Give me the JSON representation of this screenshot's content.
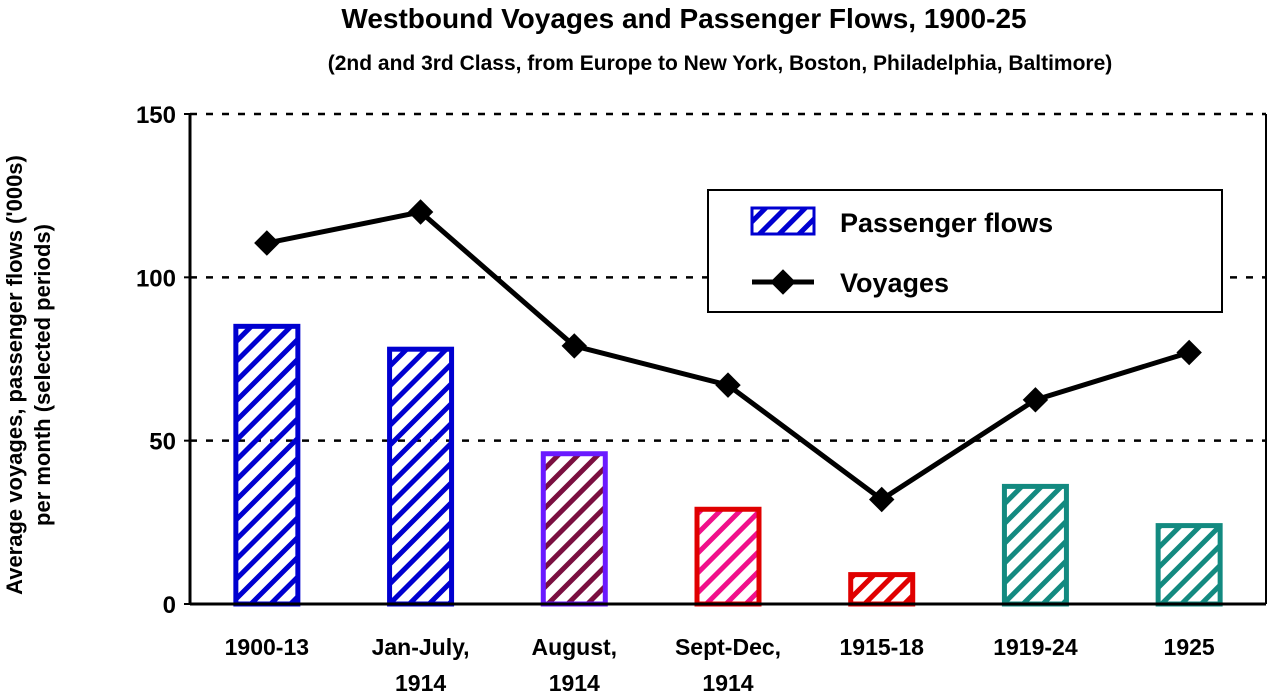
{
  "chart_data": {
    "type": "bar",
    "title": "Westbound Voyages and Passenger Flows, 1900-25",
    "subtitle": "(2nd and 3rd Class, from Europe to New York, Boston, Philadelphia, Baltimore)",
    "ylabel_line1": "Average voyages, passenger flows ('000s)",
    "ylabel_line2": "per month (selected periods)",
    "xlabel": "",
    "ylim": [
      0,
      150
    ],
    "yticks": [
      0,
      50,
      100,
      150
    ],
    "grid": "horizontal dashed at 50, 100, 150",
    "legend_placement": "top-right",
    "categories": [
      [
        "1900-13"
      ],
      [
        "Jan-July,",
        "1914"
      ],
      [
        "August,",
        "1914"
      ],
      [
        "Sept-Dec,",
        "1914"
      ],
      [
        "1915-18"
      ],
      [
        "1919-24"
      ],
      [
        "1925"
      ]
    ],
    "series": [
      {
        "name": "Passenger flows",
        "kind": "bar",
        "values": [
          85,
          78,
          46,
          29,
          9,
          36,
          24
        ],
        "outline_colors": [
          "#0000d0",
          "#0000d0",
          "#6a1aff",
          "#e00000",
          "#e00000",
          "#138a80",
          "#138a80"
        ],
        "hatch_colors": [
          "#0000d0",
          "#0000d0",
          "#7a1040",
          "#f0108a",
          "#e00000",
          "#138a80",
          "#138a80"
        ]
      },
      {
        "name": "Voyages",
        "kind": "line",
        "marker": "diamond",
        "color": "#000000",
        "values": [
          110.5,
          120,
          79,
          67,
          32,
          62.5,
          77
        ]
      }
    ]
  }
}
